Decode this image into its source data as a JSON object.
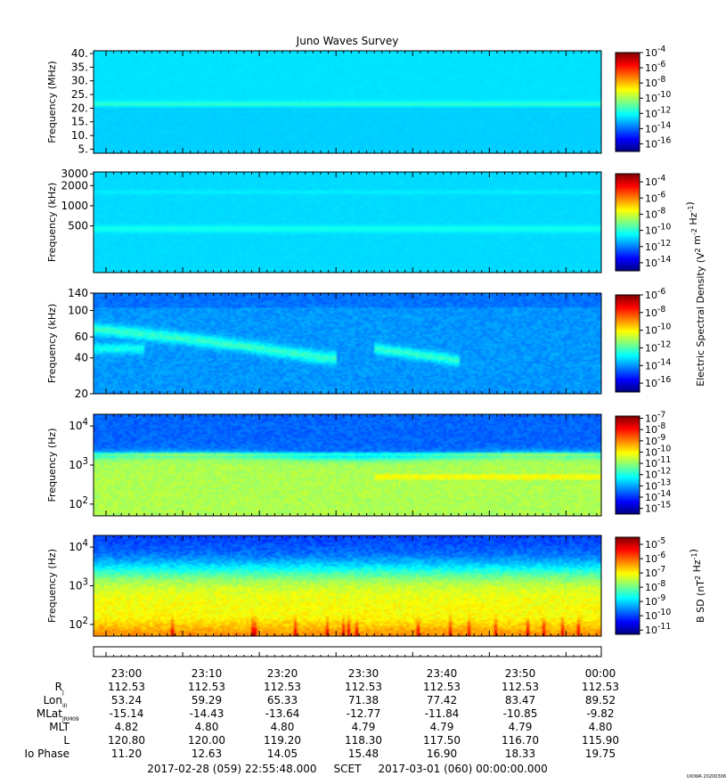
{
  "title": "Juno Waves Survey",
  "footer_id": "UIOWA 20200306",
  "colors": {
    "background": "#ffffff",
    "line": "#000000",
    "jet_stops": [
      "#00008f",
      "#0000ff",
      "#0080ff",
      "#00ffff",
      "#80ff80",
      "#ffff00",
      "#ff8000",
      "#ff0000",
      "#800000"
    ]
  },
  "chart_data": [
    {
      "type": "heatmap",
      "ylabel": "Frequency (MHz)",
      "y_scale": "linear",
      "ylim": [
        3.5,
        41
      ],
      "y_ticks": [
        "40.",
        "35.",
        "30.",
        "25.",
        "20.",
        "15.",
        "10.",
        "5."
      ],
      "y_tick_values": [
        40,
        35,
        30,
        25,
        20,
        15,
        10,
        5
      ],
      "colorbar_ticks": [
        "10^-4",
        "10^-6",
        "10^-8",
        "10^-10",
        "10^-12",
        "10^-14",
        "10^-16"
      ],
      "colorbar_exponents": [
        -4,
        -6,
        -8,
        -10,
        -12,
        -14,
        -16
      ],
      "colorbar_range": [
        -17,
        -4
      ],
      "colorbar_label": "",
      "features": {
        "background_level": -12.8,
        "emission_band_center": 21.5,
        "emission_band_level": -11.5
      }
    },
    {
      "type": "heatmap",
      "ylabel": "Frequency (kHz)",
      "y_scale": "log",
      "ylim": [
        100,
        3200
      ],
      "y_ticks": [
        "3000",
        "2000",
        "1000",
        "500"
      ],
      "y_tick_values": [
        3000,
        2000,
        1000,
        500
      ],
      "colorbar_ticks": [
        "10^-4",
        "10^-6",
        "10^-8",
        "10^-10",
        "10^-12",
        "10^-14"
      ],
      "colorbar_exponents": [
        -4,
        -6,
        -8,
        -10,
        -12,
        -14
      ],
      "colorbar_range": [
        -15,
        -3
      ],
      "colorbar_label": "Electric Spectral Density (V^2 m^-2 Hz^-1)",
      "features": {
        "background_level": -11,
        "emission_band_center": 450,
        "emission_band_level": -10.3
      }
    },
    {
      "type": "heatmap",
      "ylabel": "Frequency (kHz)",
      "y_scale": "log",
      "ylim": [
        20,
        140
      ],
      "y_ticks": [
        "140",
        "100",
        "60",
        "40",
        "20"
      ],
      "y_tick_values": [
        140,
        100,
        60,
        40,
        20
      ],
      "colorbar_ticks": [
        "10^-6",
        "10^-8",
        "10^-10",
        "10^-12",
        "10^-14",
        "10^-16"
      ],
      "colorbar_exponents": [
        -6,
        -8,
        -10,
        -12,
        -14,
        -16
      ],
      "colorbar_range": [
        -17,
        -6
      ],
      "colorbar_label": "",
      "features": {
        "background_level": -14.3,
        "emission_level": -12.6
      }
    },
    {
      "type": "heatmap",
      "ylabel": "Frequency (Hz)",
      "y_scale": "log",
      "ylim": [
        50,
        20000
      ],
      "y_ticks": [
        "10^4",
        "10^3",
        "10^2"
      ],
      "y_tick_values": [
        10000,
        1000,
        100
      ],
      "colorbar_ticks": [
        "10^-7",
        "10^-8",
        "10^-9",
        "10^-10",
        "10^-11",
        "10^-12",
        "10^-13",
        "10^-14",
        "10^-15"
      ],
      "colorbar_exponents": [
        -7,
        -8,
        -9,
        -10,
        -11,
        -12,
        -13,
        -14,
        -15
      ],
      "colorbar_range": [
        -15.5,
        -6.8
      ],
      "colorbar_label": "",
      "features": {
        "high_level": -13.8,
        "low_level": -11
      }
    },
    {
      "type": "heatmap",
      "ylabel": "Frequency (Hz)",
      "y_scale": "log",
      "ylim": [
        50,
        20000
      ],
      "y_ticks": [
        "10^4",
        "10^3",
        "10^2"
      ],
      "y_tick_values": [
        10000,
        1000,
        100
      ],
      "colorbar_ticks": [
        "10^-5",
        "10^-6",
        "10^-7",
        "10^-8",
        "10^-9",
        "10^-10",
        "10^-11"
      ],
      "colorbar_exponents": [
        -5,
        -6,
        -7,
        -8,
        -9,
        -10,
        -11
      ],
      "colorbar_range": [
        -11.3,
        -4.5
      ],
      "colorbar_label": "B SD (nT^2 Hz^-1)",
      "features": {
        "high_level": -10.3,
        "low_level": -7.3
      }
    }
  ],
  "ephemeris": {
    "time_labels": [
      "23:00",
      "23:10",
      "23:20",
      "23:30",
      "23:40",
      "23:50",
      "00:00"
    ],
    "rows": [
      {
        "label": "R",
        "sub": "J",
        "values": [
          "112.53",
          "112.53",
          "112.53",
          "112.53",
          "112.53",
          "112.53",
          "112.53"
        ]
      },
      {
        "label": "Lon",
        "sub": "III",
        "values": [
          "53.24",
          "59.29",
          "65.33",
          "71.38",
          "77.42",
          "83.47",
          "89.52"
        ]
      },
      {
        "label": "MLat",
        "sub": "JRM09",
        "values": [
          "-15.14",
          "-14.43",
          "-13.64",
          "-12.77",
          "-11.84",
          "-10.85",
          "-9.82"
        ]
      },
      {
        "label": "MLT",
        "sub": "",
        "values": [
          "4.82",
          "4.80",
          "4.80",
          "4.79",
          "4.79",
          "4.79",
          "4.80"
        ]
      },
      {
        "label": "L",
        "sub": "",
        "values": [
          "120.80",
          "120.00",
          "119.20",
          "118.30",
          "117.50",
          "116.70",
          "115.90"
        ]
      },
      {
        "label": "Io Phase",
        "sub": "",
        "values": [
          "11.20",
          "12.63",
          "14.05",
          "15.48",
          "16.90",
          "18.33",
          "19.75"
        ]
      }
    ],
    "time_range_text": "2017-02-28 (059) 22:55:48.000     SCET     2017-03-01 (060) 00:00:00.000"
  }
}
